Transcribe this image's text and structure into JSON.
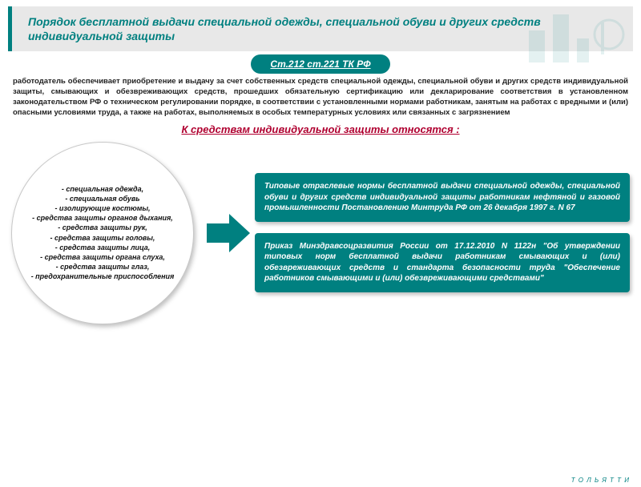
{
  "colors": {
    "teal": "#008080",
    "title_bg": "#e8e8e8",
    "accent_red": "#b00030",
    "white": "#ffffff",
    "text": "#222222"
  },
  "title": "Порядок бесплатной выдачи специальной одежды, специальной обуви и других средств индивидуальной защиты",
  "badge": "Ст.212 ст.221 ТК РФ",
  "paragraph": "работодатель обеспечивает приобретение и выдачу за счет собственных средств специальной одежды, специальной обуви и других средств индивидуальной защиты, смывающих и обезвреживающих средств, прошедших обязательную сертификацию или декларирование соответствия в установленном законодательством РФ о техническом регулировании порядке, в соответствии с установленными нормами работникам, занятым на работах с вредными и (или) опасными условиями труда, а также на работах, выполняемых в особых температурных условиях или связанных с загрязнением",
  "sub_heading": "К средствам индивидуальной защиты относятся :",
  "circle_items": [
    "- специальная одежда,",
    "- специальная обувь",
    "- изолирующие костюмы,",
    "- средства защиты органов дыхания,",
    "- средства защиты рук,",
    "- средства защиты головы,",
    "- средства защиты лица,",
    "- средства защиты органа слуха,",
    "- средства защиты глаз,",
    "- предохранительные приспособления"
  ],
  "box1": "Типовые отраслевые нормы бесплатной выдачи специальной одежды, специальной обуви и других средств индивидуальной защиты работникам нефтяной и газовой промышленности Постановлению Минтруда РФ от 26 декабря 1997 г. N 67",
  "box2": "Приказ Минздравсоцразвития России от 17.12.2010 N 1122н \"Об утверждении типовых норм бесплатной выдачи работникам смывающих и (или) обезвреживающих средств и стандарта безопасности труда \"Обеспечение работников смывающими и (или) обезвреживающими средствами\"",
  "footer": "Т О Л Ь Я Т Т И",
  "arrow": {
    "fill": "#008080",
    "width": 54,
    "height": 48
  }
}
